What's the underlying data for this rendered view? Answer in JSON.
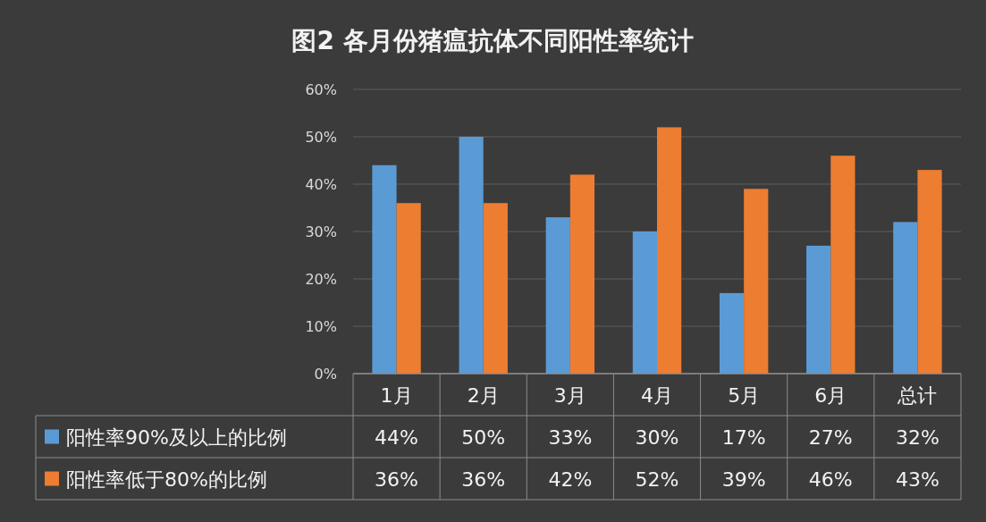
{
  "chart_data": {
    "type": "bar",
    "title": "图2 各月份猪瘟抗体不同阳性率统计",
    "categories": [
      "1月",
      "2月",
      "3月",
      "4月",
      "5月",
      "6月",
      "总计"
    ],
    "series": [
      {
        "name": "阳性率90%及以上的比例",
        "color": "#5b9bd5",
        "values": [
          44,
          50,
          33,
          30,
          17,
          27,
          32
        ],
        "value_labels": [
          "44%",
          "50%",
          "33%",
          "30%",
          "17%",
          "27%",
          "32%"
        ]
      },
      {
        "name": "阳性率低于80%的比例",
        "color": "#ed7d31",
        "values": [
          36,
          36,
          42,
          52,
          39,
          46,
          43
        ],
        "value_labels": [
          "36%",
          "36%",
          "42%",
          "52%",
          "39%",
          "46%",
          "43%"
        ]
      }
    ],
    "ylim": [
      0,
      60
    ],
    "yticks": [
      {
        "value": 0,
        "label": "0%"
      },
      {
        "value": 10,
        "label": "10%"
      },
      {
        "value": 20,
        "label": "20%"
      },
      {
        "value": 30,
        "label": "30%"
      },
      {
        "value": 40,
        "label": "40%"
      },
      {
        "value": 50,
        "label": "50%"
      },
      {
        "value": 60,
        "label": "60%"
      }
    ],
    "grid": "y",
    "legend": "bottom left"
  }
}
